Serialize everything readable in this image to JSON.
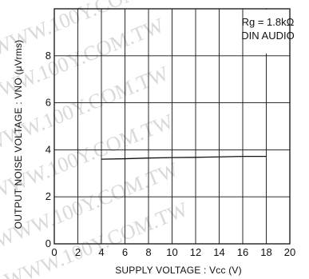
{
  "chart_data": {
    "type": "line",
    "xlabel": "SUPPLY VOLTAGE : Vcc (V)",
    "ylabel": "OUTPUT NOISE VOLTAGE : VNO (μVrms)",
    "xlim": [
      0,
      20
    ],
    "ylim": [
      0,
      10
    ],
    "x_ticks": [
      0,
      2,
      4,
      6,
      8,
      10,
      12,
      14,
      16,
      18,
      20
    ],
    "y_ticks": [
      0,
      2,
      4,
      6,
      8
    ],
    "grid": true,
    "series": [
      {
        "x": [
          4,
          6,
          8,
          10,
          12,
          14,
          16,
          18
        ],
        "y": [
          3.6,
          3.62,
          3.65,
          3.67,
          3.68,
          3.7,
          3.72,
          3.72
        ]
      }
    ],
    "annotations": [
      "Rg = 1.8kΩ",
      "DIN AUDIO"
    ],
    "line_color": "#111111"
  },
  "watermark": "WWW.100Y.COM.TW"
}
